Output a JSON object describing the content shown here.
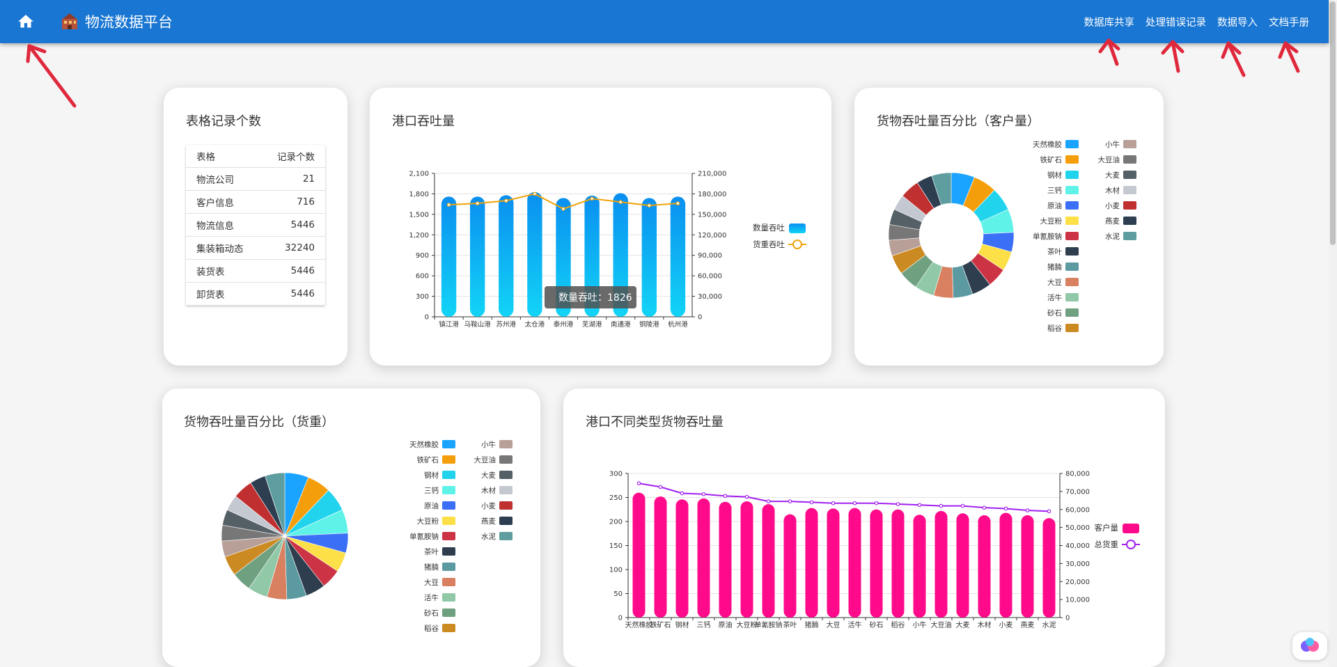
{
  "header": {
    "title": "物流数据平台",
    "nav": [
      "数据库共享",
      "处理错误记录",
      "数据导入",
      "文档手册"
    ]
  },
  "records": {
    "title": "表格记录个数",
    "columns": [
      "表格",
      "记录个数"
    ],
    "rows": [
      {
        "name": "物流公司",
        "count": "21"
      },
      {
        "name": "客户信息",
        "count": "716"
      },
      {
        "name": "物流信息",
        "count": "5446"
      },
      {
        "name": "集装箱动态",
        "count": "32240"
      },
      {
        "name": "装货表",
        "count": "5446"
      },
      {
        "name": "卸货表",
        "count": "5446"
      }
    ]
  },
  "tooltip": {
    "text": "数量吞吐：1826"
  },
  "colors": {
    "header": "#1976d2",
    "bar_blue": "#0aa3f5",
    "line_orange": "#f0a30a",
    "bar_pink": "#ff0a8a",
    "line_purple": "#a020f0"
  },
  "chart_data": [
    {
      "type": "bar",
      "title": "港口吞吐量",
      "categories": [
        "镇江港",
        "马鞍山港",
        "苏州港",
        "太仓港",
        "泰州港",
        "芜湖港",
        "南通港",
        "铜陵港",
        "杭州港"
      ],
      "series": [
        {
          "name": "数量吞吐",
          "type": "bar",
          "axis": "left",
          "values": [
            1760,
            1760,
            1780,
            1826,
            1740,
            1775,
            1810,
            1740,
            1760
          ]
        },
        {
          "name": "货重吞吐",
          "type": "line",
          "axis": "right",
          "values": [
            164000,
            166000,
            170000,
            180000,
            158000,
            173000,
            168000,
            163000,
            166000
          ]
        }
      ],
      "y_left": {
        "ticks": [
          "0",
          "300",
          "600",
          "900",
          "1,200",
          "1,500",
          "1,800",
          "2,100"
        ],
        "ylim": [
          0,
          2100
        ]
      },
      "y_right": {
        "ticks": [
          "0",
          "30,000",
          "60,000",
          "90,000",
          "120,000",
          "150,000",
          "180,000",
          "210,000"
        ],
        "ylim": [
          0,
          210000
        ]
      },
      "legend": "right"
    },
    {
      "type": "pie",
      "title": "货物吞吐量百分比（客户量）",
      "donut": true,
      "categories": [
        "天然橡胶",
        "铁矿石",
        "钢材",
        "三钙",
        "原油",
        "大豆粉",
        "单氰胺钠",
        "茶叶",
        "猪腩",
        "大豆",
        "活牛",
        "砂石",
        "稻谷",
        "小牛",
        "大豆油",
        "大麦",
        "木材",
        "小麦",
        "燕麦",
        "水泥"
      ],
      "values": [
        6,
        6,
        6,
        6,
        5,
        5,
        5,
        5,
        5,
        5,
        5,
        5,
        5,
        4,
        4,
        4,
        4,
        5,
        4,
        5
      ],
      "colors": [
        "#1aa3ff",
        "#f59e0b",
        "#22d3ee",
        "#5ef2e8",
        "#3b6ff5",
        "#fde047",
        "#cc3344",
        "#2f3e4e",
        "#5b9aa0",
        "#d88060",
        "#90c8a8",
        "#6fa080",
        "#cc8a22",
        "#b8a098",
        "#777777",
        "#556066",
        "#c4c9d1",
        "#c03030",
        "#2c3e50",
        "#5f9ea0"
      ],
      "legend": "right"
    },
    {
      "type": "pie",
      "title": "货物吞吐量百分比（货重）",
      "donut": false,
      "categories": [
        "天然橡胶",
        "铁矿石",
        "钢材",
        "三钙",
        "原油",
        "大豆粉",
        "单氰胺钠",
        "茶叶",
        "猪腩",
        "大豆",
        "活牛",
        "砂石",
        "稻谷",
        "小牛",
        "大豆油",
        "大麦",
        "木材",
        "小麦",
        "燕麦",
        "水泥"
      ],
      "values": [
        6,
        6,
        6,
        6,
        5,
        5,
        5,
        5,
        5,
        5,
        5,
        5,
        5,
        4,
        4,
        4,
        4,
        5,
        4,
        5
      ],
      "colors": [
        "#1aa3ff",
        "#f59e0b",
        "#22d3ee",
        "#5ef2e8",
        "#3b6ff5",
        "#fde047",
        "#cc3344",
        "#2f3e4e",
        "#5b9aa0",
        "#d88060",
        "#90c8a8",
        "#6fa080",
        "#cc8a22",
        "#b8a098",
        "#777777",
        "#556066",
        "#c4c9d1",
        "#c03030",
        "#2c3e50",
        "#5f9ea0"
      ],
      "legend": "right"
    },
    {
      "type": "bar",
      "title": "港口不同类型货物吞吐量",
      "categories": [
        "天然橡胶",
        "铁矿石",
        "钢材",
        "三钙",
        "原油",
        "大豆粉",
        "单氰胺钠",
        "茶叶",
        "猪腩",
        "大豆",
        "活牛",
        "砂石",
        "稻谷",
        "小牛",
        "大豆油",
        "大麦",
        "木材",
        "小麦",
        "燕麦",
        "水泥"
      ],
      "x_tick_labels": [
        "天然橡胶",
        "铁矿石",
        "钢材",
        "三钙",
        "原油",
        "大豆粉",
        "单氰胺钠",
        "茶叶",
        "猪腩",
        "大豆",
        "活牛",
        "砂石",
        "稻谷",
        "小牛",
        "大豆油",
        "大麦",
        "木材",
        "小麦",
        "燕麦",
        "水泥"
      ],
      "series": [
        {
          "name": "客户量",
          "type": "bar",
          "axis": "left",
          "values": [
            260,
            252,
            246,
            248,
            241,
            242,
            236,
            215,
            228,
            227,
            228,
            225,
            225,
            214,
            222,
            217,
            213,
            218,
            213,
            207
          ]
        },
        {
          "name": "总货重",
          "type": "line",
          "axis": "right",
          "values": [
            74500,
            72500,
            69000,
            68500,
            67500,
            67000,
            64500,
            64500,
            64000,
            63500,
            63500,
            63500,
            63000,
            62500,
            62000,
            62000,
            61000,
            60500,
            59500,
            59000
          ]
        }
      ],
      "y_left": {
        "ticks": [
          "0",
          "50",
          "100",
          "150",
          "200",
          "250",
          "300"
        ],
        "ylim": [
          0,
          300
        ]
      },
      "y_right": {
        "ticks": [
          "0",
          "10,000",
          "20,000",
          "30,000",
          "40,000",
          "50,000",
          "60,000",
          "70,000",
          "80,000"
        ],
        "ylim": [
          0,
          80000
        ]
      },
      "legend": "right"
    }
  ]
}
